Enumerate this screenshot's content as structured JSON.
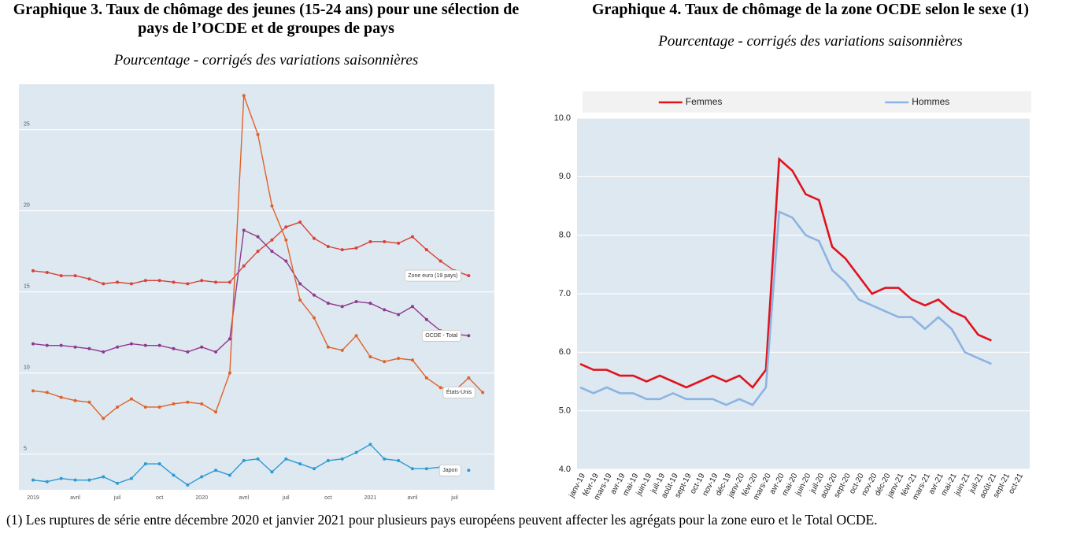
{
  "chart_data": [
    {
      "type": "line",
      "title": "Graphique 3. Taux de chômage des jeunes (15-24 ans) pour une sélection de pays de l’OCDE et de groupes de pays",
      "subtitle": "Pourcentage - corrigés des variations saisonnières",
      "categories": [
        "2019",
        null,
        null,
        "avril",
        null,
        null,
        "juil",
        null,
        null,
        "oct",
        null,
        null,
        "2020",
        null,
        null,
        "avril",
        null,
        null,
        "juil",
        null,
        null,
        "oct",
        null,
        null,
        "2021",
        null,
        null,
        "avril",
        null,
        null,
        "juil",
        null,
        null
      ],
      "series": [
        {
          "name": "Zone euro (19 pays)",
          "color": "#d9413b",
          "values": [
            16.3,
            16.2,
            16.0,
            16.0,
            15.8,
            15.5,
            15.6,
            15.5,
            15.7,
            15.7,
            15.6,
            15.5,
            15.7,
            15.6,
            15.6,
            16.6,
            17.5,
            18.2,
            19.0,
            19.3,
            18.3,
            17.8,
            17.6,
            17.7,
            18.1,
            18.1,
            18.0,
            18.4,
            17.6,
            16.9,
            16.3,
            16.0,
            null
          ]
        },
        {
          "name": "OCDE - Total",
          "color": "#8e3a8e",
          "values": [
            11.8,
            11.7,
            11.7,
            11.6,
            11.5,
            11.3,
            11.6,
            11.8,
            11.7,
            11.7,
            11.5,
            11.3,
            11.6,
            11.3,
            12.1,
            18.8,
            18.4,
            17.5,
            16.9,
            15.5,
            14.8,
            14.3,
            14.1,
            14.4,
            14.3,
            13.9,
            13.6,
            14.1,
            13.3,
            12.6,
            12.4,
            12.3,
            null
          ]
        },
        {
          "name": "États-Unis",
          "color": "#e0622b",
          "values": [
            8.9,
            8.8,
            8.5,
            8.3,
            8.2,
            7.2,
            7.9,
            8.4,
            7.9,
            7.9,
            8.1,
            8.2,
            8.1,
            7.6,
            10.0,
            27.1,
            24.7,
            20.3,
            18.2,
            14.5,
            13.4,
            11.6,
            11.4,
            12.3,
            11.0,
            10.7,
            10.9,
            10.8,
            9.7,
            9.1,
            8.9,
            9.7,
            8.8
          ]
        },
        {
          "name": "Japon",
          "color": "#2b9ad5",
          "values": [
            3.4,
            3.3,
            3.5,
            3.4,
            3.4,
            3.6,
            3.2,
            3.5,
            4.4,
            4.4,
            3.7,
            3.1,
            3.6,
            4.0,
            3.7,
            4.6,
            4.7,
            3.9,
            4.7,
            4.4,
            4.1,
            4.6,
            4.7,
            5.1,
            5.6,
            4.7,
            4.6,
            4.1,
            4.1,
            4.2,
            null,
            4.0,
            null
          ]
        }
      ],
      "ylim": [
        2.8,
        27.8
      ],
      "yticks": [
        5,
        10,
        15,
        20,
        25
      ],
      "grid": true,
      "markers": true,
      "legend": "end"
    },
    {
      "type": "line",
      "title": "Graphique 4. Taux de chômage de la zone OCDE selon le sexe (1)",
      "subtitle": "Pourcentage - corrigés des variations saisonnières",
      "categories": [
        "janv-19",
        "févr-19",
        "mars-19",
        "avr-19",
        "mai-19",
        "juin-19",
        "juil-19",
        "août-19",
        "sept-19",
        "oct-19",
        "nov-19",
        "déc-19",
        "janv-20",
        "févr-20",
        "mars-20",
        "avr-20",
        "mai-20",
        "juin-20",
        "juil-20",
        "août-20",
        "sept-20",
        "oct-20",
        "nov-20",
        "déc-20",
        "janv-21",
        "févr-21",
        "mars-21",
        "avr-21",
        "mai-21",
        "juin-21",
        "juil-21",
        "août-21",
        "sept-21",
        "oct-21"
      ],
      "series": [
        {
          "name": "Femmes",
          "color": "#e2121b",
          "values": [
            5.8,
            5.7,
            5.7,
            5.6,
            5.6,
            5.5,
            5.6,
            5.5,
            5.4,
            5.5,
            5.6,
            5.5,
            5.6,
            5.4,
            5.7,
            9.3,
            9.1,
            8.7,
            8.6,
            7.8,
            7.6,
            7.3,
            7.0,
            7.1,
            7.1,
            6.9,
            6.8,
            6.9,
            6.7,
            6.6,
            6.3,
            6.2,
            null,
            null
          ]
        },
        {
          "name": "Hommes",
          "color": "#8db3e2",
          "values": [
            5.4,
            5.3,
            5.4,
            5.3,
            5.3,
            5.2,
            5.2,
            5.3,
            5.2,
            5.2,
            5.2,
            5.1,
            5.2,
            5.1,
            5.4,
            8.4,
            8.3,
            8.0,
            7.9,
            7.4,
            7.2,
            6.9,
            6.8,
            6.7,
            6.6,
            6.6,
            6.4,
            6.6,
            6.4,
            6.0,
            5.9,
            5.8,
            null,
            null
          ]
        }
      ],
      "ylim": [
        4,
        10
      ],
      "yticks": [
        {
          "value": 4,
          "label": "4.0"
        },
        {
          "value": 5,
          "label": "5.0"
        },
        {
          "value": 6,
          "label": "6.0"
        },
        {
          "value": 7,
          "label": "7.0"
        },
        {
          "value": 8,
          "label": "8.0"
        },
        {
          "value": 9,
          "label": "9.0"
        },
        {
          "value": 10,
          "label": "10.0"
        }
      ],
      "grid": true,
      "markers": false,
      "legend": "top"
    }
  ],
  "footnote": "(1) Les ruptures de série entre décembre 2020 et janvier 2021 pour plusieurs pays européens peuvent affecter les agrégats pour la zone euro et le Total OCDE."
}
